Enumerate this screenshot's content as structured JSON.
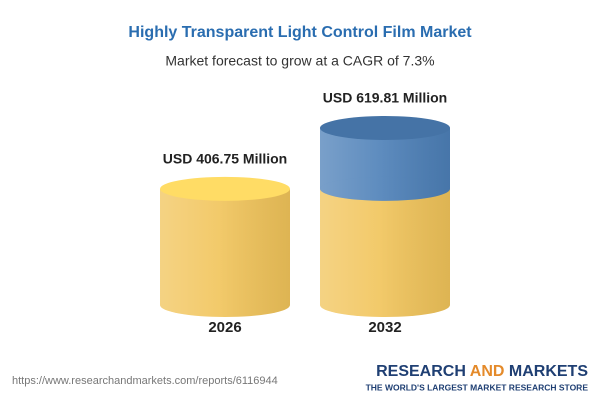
{
  "chart_data": {
    "type": "bar",
    "title": "Highly Transparent Light Control Film Market",
    "subtitle": "Market forecast to grow at a CAGR of 7.3%",
    "categories": [
      "2026",
      "2032"
    ],
    "values": [
      406.75,
      619.81
    ],
    "value_labels": [
      "USD 406.75 Million",
      "USD 619.81 Million"
    ],
    "colors": {
      "base": "#f1c45a",
      "growth": "#4d80b8"
    }
  },
  "footer": {
    "source": "https://www.researchandmarkets.com/reports/6116944",
    "brand": [
      "RESEARCH",
      "AND",
      "MARKETS"
    ],
    "tagline": "THE WORLD'S LARGEST MARKET RESEARCH STORE"
  }
}
